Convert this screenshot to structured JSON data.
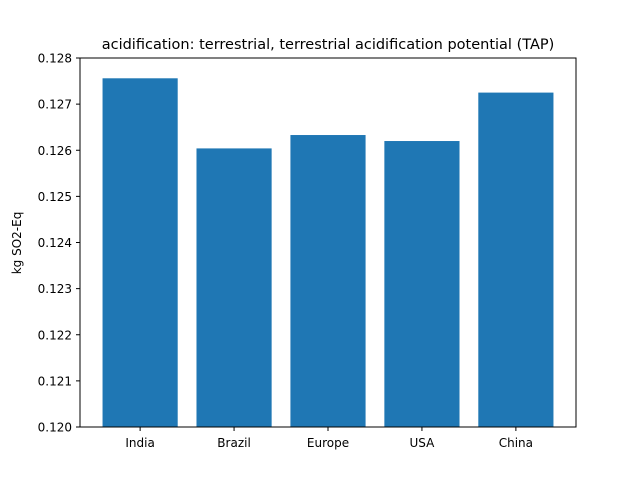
{
  "chart_data": {
    "type": "bar",
    "title": "acidification: terrestrial, terrestrial acidification potential (TAP)",
    "xlabel": "",
    "ylabel": "kg SO2-Eq",
    "categories": [
      "India",
      "Brazil",
      "Europe",
      "USA",
      "China"
    ],
    "values": [
      0.12756,
      0.12604,
      0.12633,
      0.1262,
      0.12725
    ],
    "ylim": [
      0.12,
      0.128
    ],
    "yticks": [
      "0.120",
      "0.121",
      "0.122",
      "0.123",
      "0.124",
      "0.125",
      "0.126",
      "0.127",
      "0.128"
    ],
    "grid": false,
    "bar_color": "#1f77b4"
  }
}
